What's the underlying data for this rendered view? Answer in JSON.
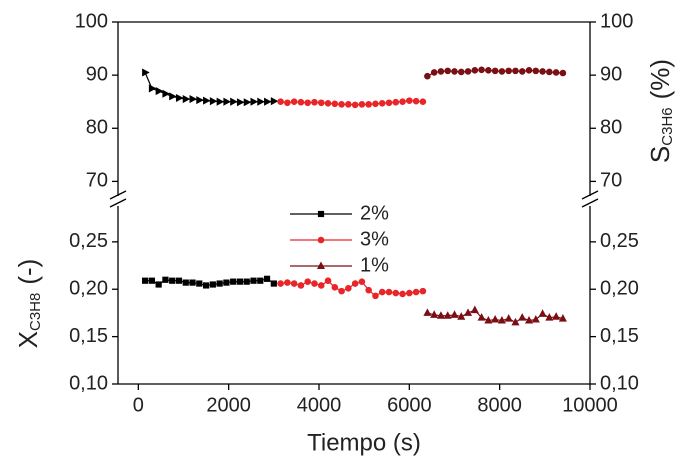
{
  "chart_data": [
    {
      "type": "line",
      "xlim": [
        -450,
        10000
      ],
      "ylim": [
        66.5,
        100
      ],
      "yticks": [
        70,
        80,
        90,
        100
      ],
      "ylabel_main": "S",
      "ylabel_sub": "C3H6",
      "ylabel_unit": "(%)",
      "series": [
        {
          "color": "#000000",
          "marker": "triangle-right",
          "x": [
            150,
            300,
            450,
            600,
            750,
            900,
            1050,
            1200,
            1350,
            1500,
            1650,
            1800,
            1950,
            2100,
            2250,
            2400,
            2550,
            2700,
            2850,
            3000
          ],
          "values": [
            90.5,
            87.5,
            87,
            86.5,
            86,
            85.7,
            85.5,
            85.5,
            85.3,
            85.2,
            85.1,
            85,
            85,
            85,
            84.9,
            84.9,
            85,
            85,
            85,
            85.1
          ]
        },
        {
          "color": "#e8262a",
          "marker": "circle",
          "x": [
            3150,
            3300,
            3450,
            3600,
            3750,
            3900,
            4050,
            4200,
            4350,
            4500,
            4650,
            4800,
            4950,
            5100,
            5250,
            5400,
            5550,
            5700,
            5850,
            6000,
            6150,
            6300
          ],
          "values": [
            85,
            84.8,
            85,
            84.9,
            84.8,
            84.9,
            84.8,
            84.7,
            84.6,
            84.5,
            84.5,
            84.4,
            84.5,
            84.5,
            84.6,
            84.7,
            84.8,
            84.9,
            85,
            85.2,
            85.1,
            85
          ]
        },
        {
          "color": "#7a0f14",
          "marker": "circle",
          "x": [
            6400,
            6550,
            6700,
            6850,
            7000,
            7150,
            7300,
            7450,
            7600,
            7750,
            7900,
            8050,
            8200,
            8350,
            8500,
            8650,
            8800,
            8950,
            9100,
            9250,
            9400
          ],
          "values": [
            89.8,
            90.5,
            90.7,
            90.8,
            90.7,
            90.6,
            90.7,
            90.9,
            91,
            90.9,
            90.8,
            90.7,
            90.8,
            90.8,
            90.7,
            90.9,
            90.8,
            90.7,
            90.6,
            90.5,
            90.4
          ]
        }
      ]
    },
    {
      "type": "line",
      "xlim": [
        -450,
        10000
      ],
      "xticks": [
        0,
        2000,
        4000,
        6000,
        8000,
        10000
      ],
      "xlabel": "Tiempo (s)",
      "ylim": [
        0.1,
        0.291
      ],
      "yticks": [
        {
          "value": 0.1,
          "label": "0,10"
        },
        {
          "value": 0.15,
          "label": "0,15"
        },
        {
          "value": 0.2,
          "label": "0,20"
        },
        {
          "value": 0.25,
          "label": "0,25"
        }
      ],
      "ylabel_main": "X",
      "ylabel_sub": "C3H8",
      "ylabel_unit": "(-)",
      "series": [
        {
          "name": "2%",
          "color": "#000000",
          "marker": "square",
          "x": [
            150,
            300,
            450,
            600,
            750,
            900,
            1050,
            1200,
            1350,
            1500,
            1650,
            1800,
            1950,
            2100,
            2250,
            2400,
            2550,
            2700,
            2850,
            3000
          ],
          "values": [
            0.209,
            0.209,
            0.205,
            0.21,
            0.209,
            0.209,
            0.207,
            0.207,
            0.206,
            0.204,
            0.205,
            0.206,
            0.207,
            0.208,
            0.208,
            0.208,
            0.209,
            0.209,
            0.211,
            0.206
          ]
        },
        {
          "name": "3%",
          "color": "#e8262a",
          "marker": "circle",
          "x": [
            3150,
            3300,
            3450,
            3600,
            3750,
            3900,
            4050,
            4200,
            4350,
            4500,
            4650,
            4800,
            4950,
            5100,
            5250,
            5400,
            5550,
            5700,
            5850,
            6000,
            6150,
            6300
          ],
          "values": [
            0.206,
            0.207,
            0.206,
            0.204,
            0.208,
            0.206,
            0.204,
            0.209,
            0.202,
            0.198,
            0.201,
            0.206,
            0.208,
            0.199,
            0.193,
            0.197,
            0.197,
            0.196,
            0.195,
            0.196,
            0.197,
            0.198
          ]
        },
        {
          "name": "1%",
          "color": "#7a0f14",
          "marker": "triangle-up",
          "x": [
            6400,
            6550,
            6700,
            6850,
            7000,
            7150,
            7300,
            7450,
            7600,
            7750,
            7900,
            8050,
            8200,
            8350,
            8500,
            8650,
            8800,
            8950,
            9100,
            9250,
            9400
          ],
          "values": [
            0.175,
            0.173,
            0.172,
            0.172,
            0.173,
            0.171,
            0.175,
            0.178,
            0.17,
            0.167,
            0.168,
            0.167,
            0.169,
            0.165,
            0.17,
            0.167,
            0.168,
            0.174,
            0.17,
            0.171,
            0.169
          ]
        }
      ]
    }
  ]
}
